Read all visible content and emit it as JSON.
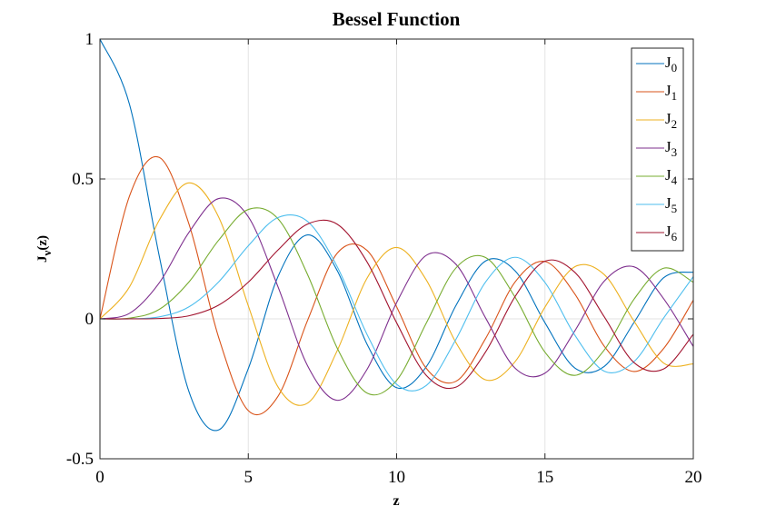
{
  "chart_data": {
    "type": "line",
    "title": "Bessel Function",
    "xlabel": "z",
    "ylabel": {
      "base": "J",
      "sub": "ν",
      "arg": "(z)"
    },
    "xlim": [
      0,
      20
    ],
    "ylim": [
      -0.5,
      1
    ],
    "xticks": [
      0,
      5,
      10,
      15,
      20
    ],
    "xtick_labels": [
      "0",
      "5",
      "10",
      "15",
      "20"
    ],
    "yticks": [
      -0.5,
      0,
      0.5,
      1
    ],
    "ytick_labels": [
      "-0.5",
      "0",
      "0.5",
      "1"
    ],
    "grid": true,
    "legend_position": "top-right",
    "x": [
      0,
      1,
      2,
      3,
      4,
      5,
      6,
      7,
      8,
      9,
      10,
      11,
      12,
      13,
      14,
      15,
      16,
      17,
      18,
      19,
      20
    ],
    "series": [
      {
        "name": "J",
        "sub": "0",
        "color": "#0072BD",
        "values": [
          1.0,
          0.765,
          0.224,
          -0.26,
          -0.397,
          -0.178,
          0.151,
          0.3,
          0.172,
          -0.09,
          -0.246,
          -0.171,
          0.048,
          0.207,
          0.171,
          -0.014,
          -0.175,
          -0.17,
          -0.013,
          0.147,
          0.167
        ]
      },
      {
        "name": "J",
        "sub": "1",
        "color": "#D95319",
        "values": [
          0.0,
          0.44,
          0.577,
          0.339,
          -0.066,
          -0.328,
          -0.277,
          -0.005,
          0.235,
          0.245,
          0.043,
          -0.177,
          -0.223,
          -0.07,
          0.133,
          0.205,
          0.09,
          -0.098,
          -0.188,
          -0.106,
          0.067
        ]
      },
      {
        "name": "J",
        "sub": "2",
        "color": "#EDB120",
        "values": [
          0.0,
          0.115,
          0.353,
          0.486,
          0.364,
          0.047,
          -0.243,
          -0.301,
          -0.113,
          0.145,
          0.255,
          0.139,
          -0.085,
          -0.218,
          -0.152,
          0.042,
          0.186,
          0.158,
          -0.008,
          -0.158,
          -0.161
        ]
      },
      {
        "name": "J",
        "sub": "3",
        "color": "#7E2F8E",
        "values": [
          0.0,
          0.02,
          0.129,
          0.309,
          0.43,
          0.365,
          0.115,
          -0.168,
          -0.291,
          -0.181,
          0.058,
          0.227,
          0.195,
          0.003,
          -0.177,
          -0.194,
          -0.044,
          0.135,
          0.186,
          0.072,
          -0.099
        ]
      },
      {
        "name": "J",
        "sub": "4",
        "color": "#77AC30",
        "values": [
          0.0,
          0.0025,
          0.034,
          0.132,
          0.281,
          0.391,
          0.358,
          0.158,
          -0.105,
          -0.265,
          -0.22,
          -0.015,
          0.182,
          0.219,
          0.076,
          -0.119,
          -0.202,
          -0.111,
          0.07,
          0.181,
          0.131
        ]
      },
      {
        "name": "J",
        "sub": "5",
        "color": "#4DBEEE",
        "values": [
          0.0,
          0.0002,
          0.007,
          0.043,
          0.132,
          0.261,
          0.362,
          0.348,
          0.186,
          -0.055,
          -0.234,
          -0.238,
          -0.073,
          0.132,
          0.22,
          0.13,
          -0.057,
          -0.187,
          -0.153,
          0.003,
          0.151
        ]
      },
      {
        "name": "J",
        "sub": "6",
        "color": "#A2142F",
        "values": [
          0.0,
          2e-05,
          0.0012,
          0.011,
          0.049,
          0.131,
          0.246,
          0.339,
          0.338,
          0.204,
          -0.014,
          -0.202,
          -0.244,
          -0.118,
          0.081,
          0.206,
          0.167,
          0.007,
          -0.156,
          -0.179,
          -0.055
        ]
      }
    ]
  }
}
